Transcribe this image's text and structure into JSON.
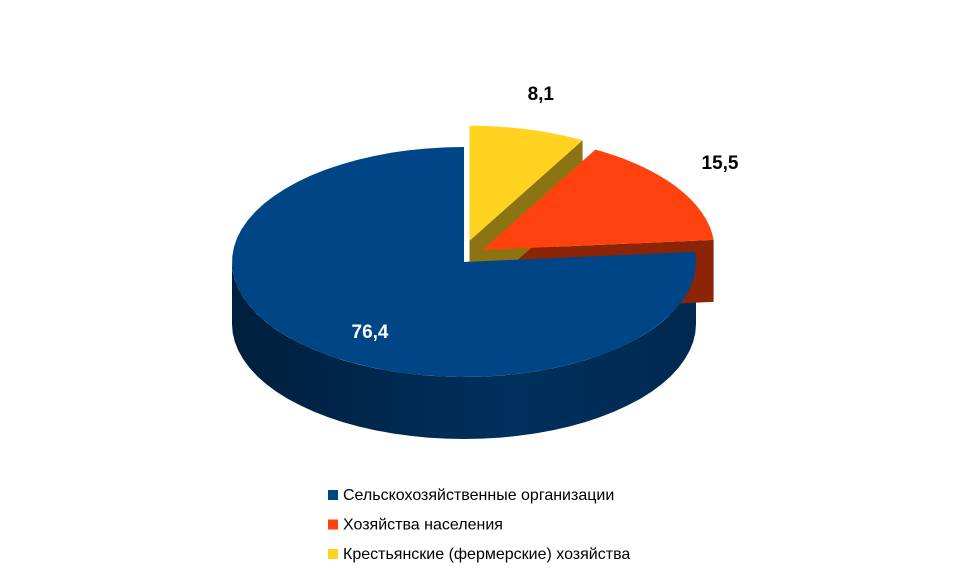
{
  "chart_data": {
    "type": "pie",
    "categories": [
      "Сельскохозяйственные организации",
      "Хозяйства населения",
      "Крестьянские (фермерские) хозяйства"
    ],
    "values": [
      76.4,
      15.5,
      8.1
    ],
    "value_labels": [
      "76,4",
      "15,5",
      "8,1"
    ],
    "colors": [
      "#004586",
      "#ff420e",
      "#ffd320"
    ],
    "legend": "bottom"
  }
}
